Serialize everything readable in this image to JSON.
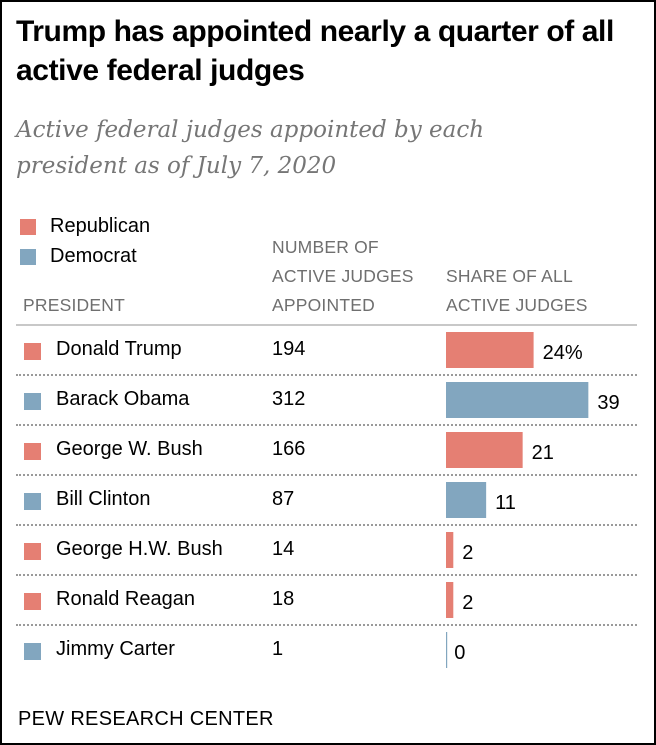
{
  "header": {
    "title": "Trump has appointed nearly a quarter of all active federal judges",
    "subtitle": "Active federal judges appointed by each president as of July 7, 2020"
  },
  "legend": [
    {
      "label": "Republican",
      "color": "#e57f73"
    },
    {
      "label": "Democrat",
      "color": "#82a6bf"
    }
  ],
  "columns": {
    "president": "PRESIDENT",
    "count": [
      "NUMBER OF",
      "ACTIVE JUDGES",
      "APPOINTED"
    ],
    "share": [
      "SHARE OF ALL",
      "ACTIVE JUDGES"
    ]
  },
  "footer": "PEW RESEARCH CENTER",
  "chart_data": {
    "type": "bar",
    "orientation": "horizontal",
    "title": "Trump has appointed nearly a quarter of all active federal judges",
    "subtitle": "Active federal judges appointed by each president as of July 7, 2020",
    "xlabel": "SHARE OF ALL ACTIVE JUDGES",
    "ylabel": "PRESIDENT",
    "xlim": [
      0,
      40
    ],
    "grid": false,
    "legend_position": "top-left",
    "legend": [
      {
        "label": "Republican",
        "color": "#e57f73"
      },
      {
        "label": "Democrat",
        "color": "#82a6bf"
      }
    ],
    "categories": [
      "Donald Trump",
      "Barack Obama",
      "George W. Bush",
      "Bill Clinton",
      "George H.W. Bush",
      "Ronald Reagan",
      "Jimmy Carter"
    ],
    "party": [
      "Republican",
      "Democrat",
      "Republican",
      "Democrat",
      "Republican",
      "Republican",
      "Democrat"
    ],
    "judges_appointed": [
      194,
      312,
      166,
      87,
      14,
      18,
      1
    ],
    "values": [
      24,
      39,
      21,
      11,
      2,
      2,
      0
    ],
    "value_labels": [
      "24%",
      "39",
      "21",
      "11",
      "2",
      "2",
      "0"
    ]
  }
}
